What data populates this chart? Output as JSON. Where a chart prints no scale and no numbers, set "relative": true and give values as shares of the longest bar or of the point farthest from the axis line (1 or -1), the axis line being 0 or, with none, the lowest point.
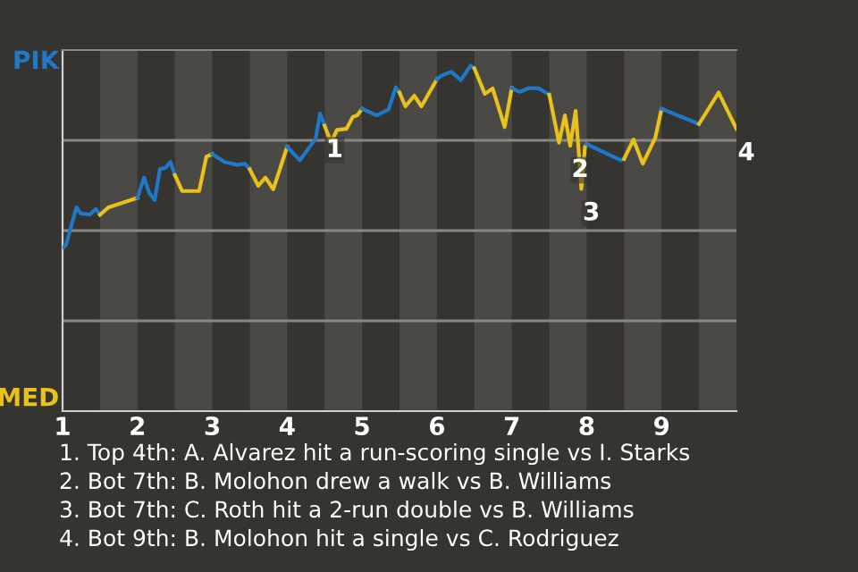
{
  "chart_data": {
    "type": "line",
    "relative": true,
    "xlim": [
      1,
      10
    ],
    "xticks": [
      1,
      2,
      3,
      4,
      5,
      6,
      7,
      8,
      9
    ],
    "grid": "y",
    "marker": "none",
    "line_style": "solid",
    "bands": [
      {
        "axis": "x",
        "from": 1.5,
        "to": 2,
        "color": "#4b4946"
      },
      {
        "axis": "x",
        "from": 2.5,
        "to": 3,
        "color": "#4b4946"
      },
      {
        "axis": "x",
        "from": 3.5,
        "to": 4,
        "color": "#4b4946"
      },
      {
        "axis": "x",
        "from": 4.5,
        "to": 5,
        "color": "#4b4946"
      },
      {
        "axis": "x",
        "from": 5.5,
        "to": 6,
        "color": "#4b4946"
      },
      {
        "axis": "x",
        "from": 6.5,
        "to": 7,
        "color": "#4b4946"
      },
      {
        "axis": "x",
        "from": 7.5,
        "to": 8,
        "color": "#4b4946"
      },
      {
        "axis": "x",
        "from": 8.5,
        "to": 9,
        "color": "#4b4946"
      },
      {
        "axis": "x",
        "from": 9.5,
        "to": 10,
        "color": "#4b4946"
      }
    ],
    "series": [
      {
        "color": "#1f78c8",
        "x": [
          1.014,
          1.047,
          1.185,
          1.241,
          1.364,
          1.447,
          1.5
        ],
        "values": [
          0.474,
          0.481,
          0.59,
          0.572,
          0.569,
          0.585,
          0.568
        ]
      },
      {
        "color": "#e8c21a",
        "x": [
          1.5,
          1.615,
          2
        ],
        "values": [
          0.568,
          0.59,
          0.617
        ]
      },
      {
        "color": "#1f78c8",
        "x": [
          2,
          2.088,
          2.159,
          2.23,
          2.3,
          2.371,
          2.442,
          2.5
        ],
        "values": [
          0.617,
          0.676,
          0.631,
          0.611,
          0.7,
          0.704,
          0.721,
          0.683
        ]
      },
      {
        "color": "#e8c21a",
        "x": [
          2.5,
          2.597,
          2.824,
          2.92,
          3
        ],
        "values": [
          0.683,
          0.637,
          0.637,
          0.736,
          0.744
        ]
      },
      {
        "color": "#1f78c8",
        "x": [
          3,
          3.163,
          3.327,
          3.435,
          3.5
        ],
        "values": [
          0.744,
          0.721,
          0.713,
          0.716,
          0.7
        ]
      },
      {
        "color": "#e8c21a",
        "x": [
          3.5,
          3.614,
          3.71,
          3.814,
          4
        ],
        "values": [
          0.7,
          0.652,
          0.676,
          0.642,
          0.765
        ]
      },
      {
        "color": "#1f78c8",
        "x": [
          4,
          4.17,
          4.379,
          4.44,
          4.5
        ],
        "values": [
          0.765,
          0.726,
          0.788,
          0.861,
          0.826
        ]
      },
      {
        "color": "#e8c21a",
        "x": [
          4.5,
          4.587,
          4.664,
          4.791,
          4.878,
          4.936,
          5
        ],
        "values": [
          0.826,
          0.777,
          0.814,
          0.817,
          0.852,
          0.856,
          0.875
        ]
      },
      {
        "color": "#1f78c8",
        "x": [
          5,
          5.196,
          5.354,
          5.45,
          5.5
        ],
        "values": [
          0.875,
          0.856,
          0.873,
          0.937,
          0.922
        ]
      },
      {
        "color": "#e8c21a",
        "x": [
          5.5,
          5.579,
          5.698,
          5.793,
          6
        ],
        "values": [
          0.922,
          0.882,
          0.913,
          0.882,
          0.961
        ]
      },
      {
        "color": "#1f78c8",
        "x": [
          6,
          6.062,
          6.19,
          6.32,
          6.449,
          6.5
        ],
        "values": [
          0.961,
          0.971,
          0.982,
          0.958,
          1,
          0.992
        ]
      },
      {
        "color": "#e8c21a",
        "x": [
          6.5,
          6.64,
          6.744,
          6.904,
          7
        ],
        "values": [
          0.992,
          0.918,
          0.934,
          0.822,
          0.935
        ]
      },
      {
        "color": "#1f78c8",
        "x": [
          7,
          7.105,
          7.232,
          7.359,
          7.5
        ],
        "values": [
          0.935,
          0.924,
          0.935,
          0.934,
          0.916
        ]
      },
      {
        "color": "#e8c21a",
        "x": [
          7.5,
          7.63,
          7.709,
          7.78,
          7.852,
          7.898,
          7.929,
          7.977,
          8
        ],
        "values": [
          0.916,
          0.777,
          0.856,
          0.768,
          0.869,
          0.739,
          0.643,
          0.765,
          0.773
        ]
      },
      {
        "color": "#1f78c8",
        "x": [
          8,
          8.458,
          8.5
        ],
        "values": [
          0.773,
          0.726,
          0.73
        ]
      },
      {
        "color": "#e8c21a",
        "x": [
          8.5,
          8.625,
          8.75,
          8.916,
          9
        ],
        "values": [
          0.73,
          0.786,
          0.716,
          0.791,
          0.875
        ]
      },
      {
        "color": "#1f78c8",
        "x": [
          9,
          9.5
        ],
        "values": [
          0.875,
          0.831
        ]
      },
      {
        "color": "#e8c21a",
        "x": [
          9.5,
          9.762,
          10
        ],
        "values": [
          0.831,
          0.922,
          0.817
        ]
      }
    ],
    "annotations": [
      {
        "text": "1",
        "x": 4.5,
        "y": 0.826
      },
      {
        "text": "2",
        "x": 7.78,
        "y": 0.768
      },
      {
        "text": "3",
        "x": 7.929,
        "y": 0.643
      },
      {
        "text": "4",
        "x": 10,
        "y": 0.817
      },
      "PIK",
      "MED",
      "1. Top 4th: A. Alvarez hit a run-scoring single vs I. Starks",
      "2. Bot 7th: B. Molohon drew a walk vs B. Williams",
      "3. Bot 7th: C. Roth hit a 2-run double vs B. Williams",
      "4. Bot 9th: B. Molohon hit a single vs C. Rodriguez"
    ]
  }
}
